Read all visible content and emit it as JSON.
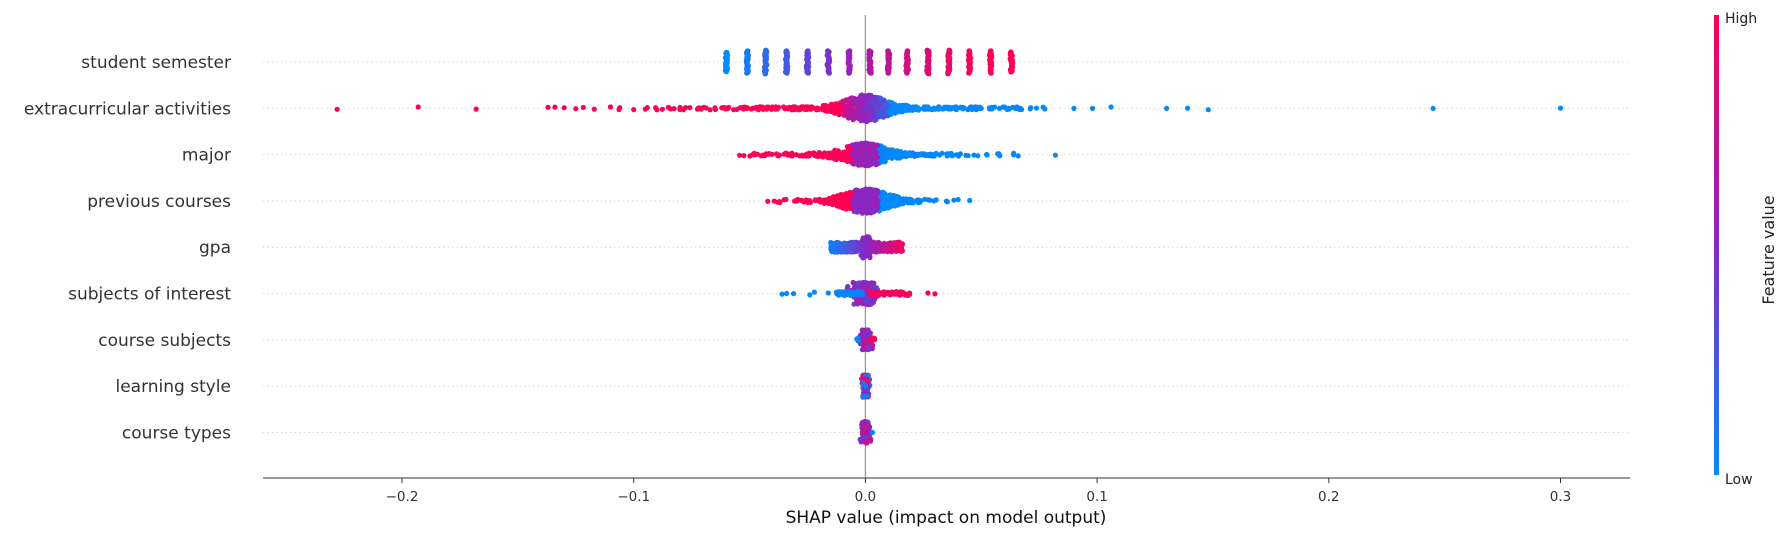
{
  "chart_data": {
    "type": "scatter",
    "subtype": "shap-beeswarm",
    "features": [
      "student semester",
      "extracurricular activities",
      "major",
      "previous courses",
      "gpa",
      "subjects of interest",
      "course subjects",
      "learning style",
      "course types"
    ],
    "xlabel": "SHAP value (impact on model output)",
    "xlim": [
      -0.26,
      0.33
    ],
    "xticks": [
      -0.2,
      -0.1,
      0.0,
      0.1,
      0.2,
      0.3
    ],
    "xtick_labels": [
      "−0.2",
      "−0.1",
      "0.0",
      "0.1",
      "0.2",
      "0.3"
    ],
    "colorbar": {
      "label": "Feature value",
      "high_label": "High",
      "low_label": "Low"
    },
    "colors": {
      "low": "#008bfb",
      "high": "#ff0052",
      "mid": "#8a26c4",
      "grid": "#cccccc",
      "axis": "#333333",
      "zero_line": "#999999"
    },
    "series": [
      {
        "feature": "student semester",
        "clusters": [
          [
            -0.06,
            0.05,
            0
          ],
          [
            -0.051,
            0.1,
            0.08
          ],
          [
            -0.043,
            0.12,
            0.15
          ],
          [
            -0.034,
            0.1,
            0.25
          ],
          [
            -0.025,
            0.1,
            0.35
          ],
          [
            -0.016,
            0.1,
            0.45
          ],
          [
            -0.007,
            0.1,
            0.55
          ],
          [
            0.002,
            0.1,
            0.65
          ],
          [
            0.01,
            0.1,
            0.72
          ],
          [
            0.018,
            0.1,
            0.8
          ],
          [
            0.027,
            0.12,
            0.85
          ],
          [
            0.036,
            0.12,
            0.9
          ],
          [
            0.045,
            0.1,
            0.95
          ],
          [
            0.054,
            0.1,
            0.98
          ],
          [
            0.063,
            0.06,
            1.0
          ]
        ]
      },
      {
        "feature": "extracurricular activities",
        "outliers": [
          [
            -0.228,
            1
          ],
          [
            -0.193,
            1
          ],
          [
            -0.168,
            1
          ],
          [
            -0.137,
            1
          ],
          [
            -0.134,
            1
          ],
          [
            -0.13,
            1
          ],
          [
            -0.125,
            1
          ],
          [
            -0.117,
            1
          ],
          [
            -0.11,
            1
          ],
          [
            -0.106,
            1
          ],
          [
            -0.1,
            1
          ],
          [
            -0.095,
            1
          ],
          [
            -0.09,
            1
          ],
          [
            -0.085,
            1
          ],
          [
            -0.08,
            1
          ],
          [
            0.09,
            0
          ],
          [
            0.098,
            0
          ],
          [
            0.106,
            0
          ],
          [
            0.13,
            0
          ],
          [
            0.139,
            0
          ],
          [
            0.148,
            0
          ],
          [
            0.245,
            0
          ],
          [
            0.3,
            0
          ]
        ]
      },
      {
        "feature": "major",
        "outliers": [
          [
            -0.048,
            1
          ],
          [
            0.058,
            0
          ],
          [
            0.064,
            0
          ],
          [
            0.082,
            0
          ]
        ]
      },
      {
        "feature": "previous courses",
        "outliers": [
          [
            -0.037,
            1
          ],
          [
            0.04,
            0
          ],
          [
            0.045,
            0
          ]
        ]
      },
      {
        "feature": "gpa",
        "outliers": []
      },
      {
        "feature": "subjects of interest",
        "outliers": [
          [
            -0.036,
            0
          ],
          [
            -0.034,
            0
          ],
          [
            -0.031,
            0
          ],
          [
            -0.024,
            0
          ],
          [
            -0.022,
            0
          ],
          [
            -0.016,
            0
          ],
          [
            0.027,
            1
          ],
          [
            0.03,
            1
          ]
        ]
      },
      {
        "feature": "course subjects",
        "outliers": []
      },
      {
        "feature": "learning style",
        "outliers": []
      },
      {
        "feature": "course types",
        "outliers": []
      }
    ]
  }
}
